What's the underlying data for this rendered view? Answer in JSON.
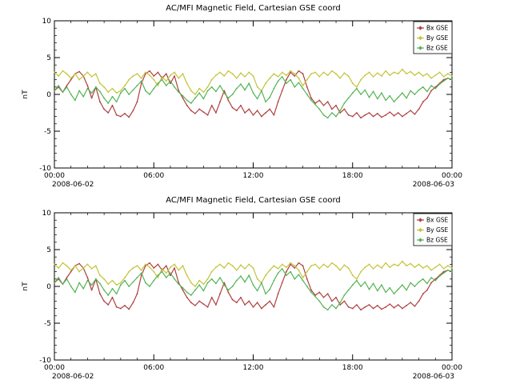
{
  "page": {
    "background": "#ffffff",
    "frame_color": "#000000"
  },
  "chart_data": {
    "type": "line",
    "panels": 2,
    "title": "AC/MFI Magnetic Field, Cartesian GSE coord",
    "ylabel": "nT",
    "ylim": [
      -10,
      10
    ],
    "y_major_ticks": [
      -10,
      -5,
      0,
      5,
      10
    ],
    "x_hours_range": [
      0,
      24
    ],
    "x_major_ticks_hours": [
      0,
      6,
      12,
      18,
      24
    ],
    "x_tick_labels": [
      "00:00",
      "06:00",
      "12:00",
      "18:00",
      "00:00"
    ],
    "x_start_date_label": "2008-06-02",
    "x_end_date_label": "2008-06-03",
    "legend_position": "top-right",
    "grid": false,
    "series": [
      {
        "name": "Bx GSE",
        "color": "#b04040",
        "values": [
          0.5,
          1.0,
          0.3,
          1.2,
          2.0,
          2.8,
          3.1,
          2.5,
          1.2,
          -0.5,
          1.0,
          -1.0,
          -2.0,
          -2.5,
          -1.5,
          -2.8,
          -3.0,
          -2.6,
          -3.1,
          -2.2,
          -1.0,
          1.5,
          2.8,
          3.2,
          2.5,
          3.0,
          2.2,
          2.8,
          1.5,
          2.5,
          0.5,
          -0.5,
          -1.5,
          -2.2,
          -2.6,
          -2.0,
          -2.4,
          -2.8,
          -1.5,
          -2.5,
          -1.0,
          0.5,
          -0.8,
          -1.8,
          -2.2,
          -1.5,
          -2.5,
          -2.0,
          -2.8,
          -2.2,
          -3.0,
          -2.5,
          -2.0,
          -2.8,
          -1.0,
          0.5,
          2.0,
          3.0,
          2.5,
          3.2,
          2.8,
          1.0,
          -0.5,
          -1.2,
          -0.8,
          -1.5,
          -1.0,
          -2.0,
          -1.5,
          -2.5,
          -2.0,
          -2.8,
          -3.0,
          -2.5,
          -3.2,
          -2.8,
          -2.5,
          -3.0,
          -2.6,
          -3.1,
          -2.8,
          -2.4,
          -2.9,
          -2.5,
          -3.0,
          -2.6,
          -2.2,
          -2.7,
          -2.0,
          -1.0,
          -0.5,
          0.5,
          1.0,
          1.5,
          2.0,
          2.2,
          2.0
        ]
      },
      {
        "name": "By GSE",
        "color": "#c3c33c",
        "values": [
          3.0,
          2.5,
          3.2,
          2.8,
          2.2,
          2.8,
          2.0,
          2.5,
          3.0,
          2.4,
          2.8,
          1.5,
          1.0,
          0.3,
          0.8,
          0.2,
          0.5,
          1.2,
          2.0,
          2.5,
          2.8,
          2.2,
          3.0,
          2.6,
          2.0,
          1.2,
          2.4,
          1.8,
          2.6,
          3.0,
          2.2,
          2.8,
          1.5,
          0.5,
          0.0,
          0.8,
          0.3,
          1.0,
          2.0,
          2.6,
          3.0,
          2.5,
          3.2,
          2.8,
          2.2,
          2.9,
          2.4,
          3.0,
          2.5,
          1.0,
          0.5,
          1.5,
          2.2,
          2.8,
          2.4,
          3.0,
          2.6,
          3.2,
          2.8,
          2.2,
          1.2,
          2.0,
          2.8,
          3.0,
          2.4,
          3.0,
          2.6,
          3.2,
          2.8,
          2.2,
          2.9,
          2.5,
          1.5,
          1.0,
          2.0,
          2.6,
          3.0,
          2.4,
          2.9,
          2.5,
          3.2,
          2.6,
          3.0,
          2.8,
          3.4,
          2.8,
          3.1,
          2.6,
          3.0,
          2.5,
          2.8,
          2.2,
          2.6,
          3.0,
          2.4,
          2.8,
          2.5
        ]
      },
      {
        "name": "Bz GSE",
        "color": "#55b455",
        "values": [
          0.5,
          1.2,
          0.3,
          1.0,
          0.0,
          -0.8,
          0.5,
          -0.3,
          0.8,
          0.2,
          1.0,
          0.4,
          -0.5,
          -1.2,
          -0.3,
          -1.0,
          0.2,
          0.8,
          0.0,
          0.6,
          1.2,
          1.8,
          0.5,
          0.0,
          0.8,
          1.5,
          2.0,
          1.2,
          1.8,
          1.0,
          0.3,
          -0.2,
          -0.8,
          -1.2,
          -0.5,
          0.2,
          -0.6,
          0.5,
          1.0,
          0.4,
          1.2,
          0.2,
          -0.5,
          0.0,
          0.8,
          1.4,
          0.6,
          1.5,
          0.2,
          -0.6,
          0.5,
          -1.0,
          -0.4,
          0.8,
          1.8,
          2.4,
          1.5,
          2.0,
          1.0,
          1.6,
          0.8,
          0.0,
          -0.8,
          -1.4,
          -2.0,
          -2.8,
          -3.2,
          -2.5,
          -3.0,
          -2.2,
          -1.2,
          -0.5,
          0.2,
          0.8,
          0.0,
          0.6,
          -0.4,
          0.4,
          -0.6,
          0.2,
          -0.8,
          -0.2,
          -1.0,
          -0.4,
          0.2,
          -0.5,
          0.5,
          0.0,
          0.6,
          1.0,
          0.4,
          1.2,
          0.8,
          1.4,
          1.8,
          2.2,
          2.0
        ]
      }
    ]
  }
}
